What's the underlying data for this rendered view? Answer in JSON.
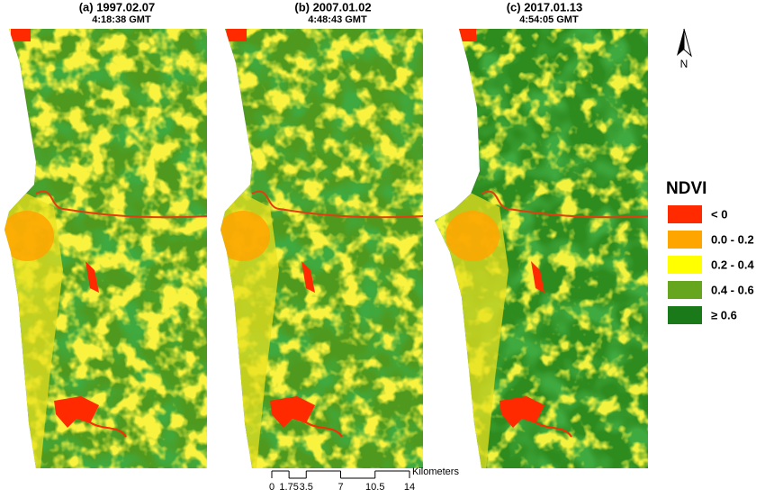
{
  "panels": [
    {
      "title": "(a) 1997.02.07",
      "time": "4:18:38 GMT"
    },
    {
      "title": "(b) 2007.01.02",
      "time": "4:48:43 GMT"
    },
    {
      "title": "(c) 2017.01.13",
      "time": "4:54:05 GMT"
    }
  ],
  "north": {
    "label": "N"
  },
  "legend": {
    "title": "NDVI",
    "items": [
      {
        "label": "< 0",
        "color": "#ff2a00"
      },
      {
        "label": "0.0 - 0.2",
        "color": "#ffa500"
      },
      {
        "label": "0.2 - 0.4",
        "color": "#ffff00"
      },
      {
        "label": "0.4 - 0.6",
        "color": "#66a61e"
      },
      {
        "label": "≥ 0.6",
        "color": "#1a7a1a"
      }
    ]
  },
  "scale": {
    "unit": "Kilometers",
    "ticks": [
      0,
      1.75,
      3.5,
      7,
      10.5,
      14
    ]
  }
}
